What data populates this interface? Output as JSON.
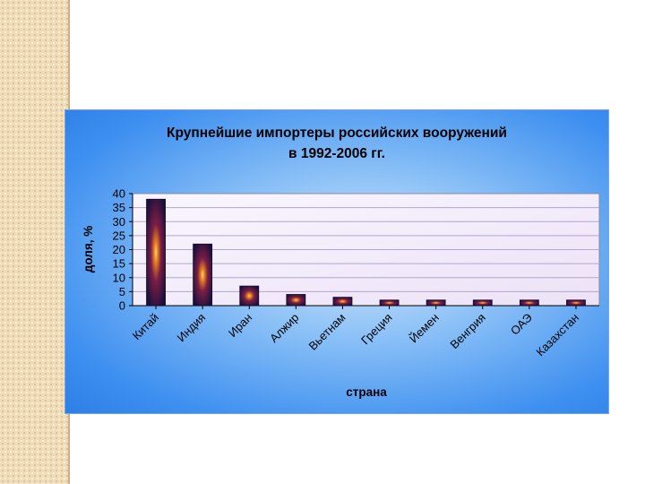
{
  "chart_data": {
    "type": "bar",
    "title_lines": [
      "Крупнейшие импортеры российских вооружений",
      "в 1992-2006 гг."
    ],
    "xlabel": "страна",
    "ylabel": "доля, %",
    "ylim": [
      0,
      40
    ],
    "yticks": [
      0,
      5,
      10,
      15,
      20,
      25,
      30,
      35,
      40
    ],
    "categories": [
      "Китай",
      "Индия",
      "Иран",
      "Алжир",
      "Вьетнам",
      "Греция",
      "Йемен",
      "Венгрия",
      "ОАЭ",
      "Казахстан"
    ],
    "values": [
      38,
      22,
      7,
      4,
      3,
      2,
      2,
      2,
      2,
      2
    ],
    "grid": true,
    "legend": "none",
    "colors": {
      "bar_dark": "#1a0f3c",
      "bar_glow": "#e8a030",
      "plot_bg": "#f3ecf9",
      "gridline": "#b0a8c8"
    }
  }
}
